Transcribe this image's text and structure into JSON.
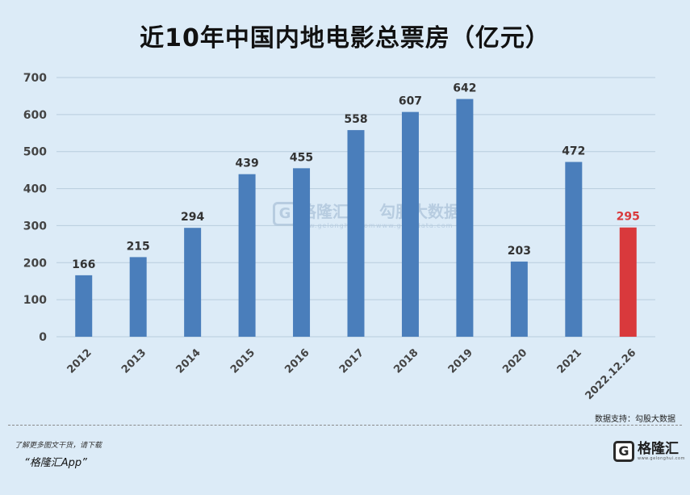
{
  "chart_data": {
    "type": "bar",
    "title": "近10年中国内地电影总票房（亿元）",
    "categories": [
      "2012",
      "2013",
      "2014",
      "2015",
      "2016",
      "2017",
      "2018",
      "2019",
      "2020",
      "2021",
      "2022.12.26"
    ],
    "values": [
      166,
      215,
      294,
      439,
      455,
      558,
      607,
      642,
      203,
      472,
      295
    ],
    "highlight_index": 10,
    "colors": {
      "bar": "#4a7ebb",
      "highlight": "#d9393c",
      "label": "#333333",
      "highlight_label": "#d9393c",
      "grid": "#b8ccdd",
      "axis_text": "#444444"
    },
    "ylim": [
      0,
      700
    ],
    "yticks": [
      0,
      100,
      200,
      300,
      400,
      500,
      600,
      700
    ],
    "grid": true,
    "legend": "none"
  },
  "source": "数据支持：勾股大数据",
  "footer": {
    "note": "了解更多图文干货，请下载",
    "app": "“格隆汇App”"
  },
  "brand": {
    "logo_letter": "G",
    "name": "格隆汇",
    "url": "www.gelonghui.com"
  },
  "watermarks": [
    {
      "logo_letter": "G",
      "name": "格隆汇",
      "url": "www.gelonghui.com"
    },
    {
      "name": "勾股大数据",
      "url": "www.gugudata.com"
    }
  ]
}
